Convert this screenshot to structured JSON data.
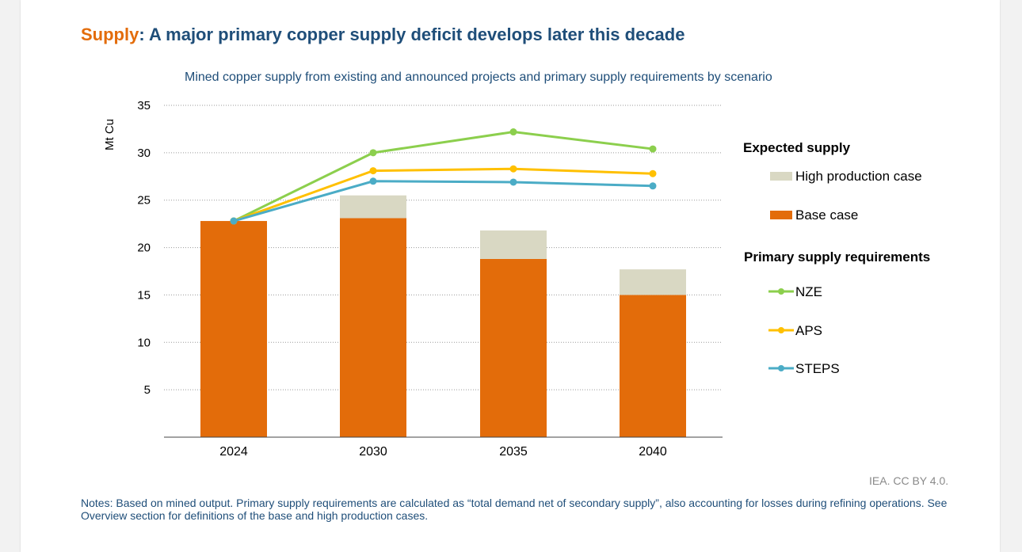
{
  "title": {
    "keyword": "Supply",
    "separator": ": ",
    "text": "A major primary copper supply deficit develops later this decade"
  },
  "chart_data": {
    "type": "bar",
    "subtitle": "Mined copper supply from existing and announced projects and primary supply requirements by scenario",
    "ylabel": "Mt Cu",
    "ylim": [
      0,
      35
    ],
    "yticks": [
      5,
      10,
      15,
      20,
      25,
      30,
      35
    ],
    "grid": true,
    "categories": [
      "2024",
      "2030",
      "2035",
      "2040"
    ],
    "bar_series": [
      {
        "name": "Base case",
        "color": "#e36c0a",
        "values": [
          22.8,
          23.1,
          18.8,
          15.0
        ]
      },
      {
        "name": "High production case",
        "color": "#d9d8c3",
        "values": [
          0,
          2.4,
          3.0,
          2.7
        ]
      }
    ],
    "line_series": [
      {
        "name": "NZE",
        "color": "#8ccf4d",
        "values": [
          22.8,
          30.0,
          32.2,
          30.4
        ]
      },
      {
        "name": "APS",
        "color": "#ffc000",
        "values": [
          22.8,
          28.1,
          28.3,
          27.8
        ]
      },
      {
        "name": "STEPS",
        "color": "#4bacc6",
        "values": [
          22.8,
          27.0,
          26.9,
          26.5
        ]
      }
    ],
    "legend": {
      "placement": "right",
      "groups": [
        {
          "heading": "Expected supply",
          "items": [
            "High production case",
            "Base case"
          ]
        },
        {
          "heading": "Primary supply requirements",
          "items": [
            "NZE",
            "APS",
            "STEPS"
          ]
        }
      ]
    }
  },
  "credit": "IEA. CC BY 4.0.",
  "notes": "Notes: Based on mined output. Primary supply requirements are calculated as “total demand net of secondary supply”, also accounting for losses during refining operations. See Overview section for definitions of the base and high production cases."
}
